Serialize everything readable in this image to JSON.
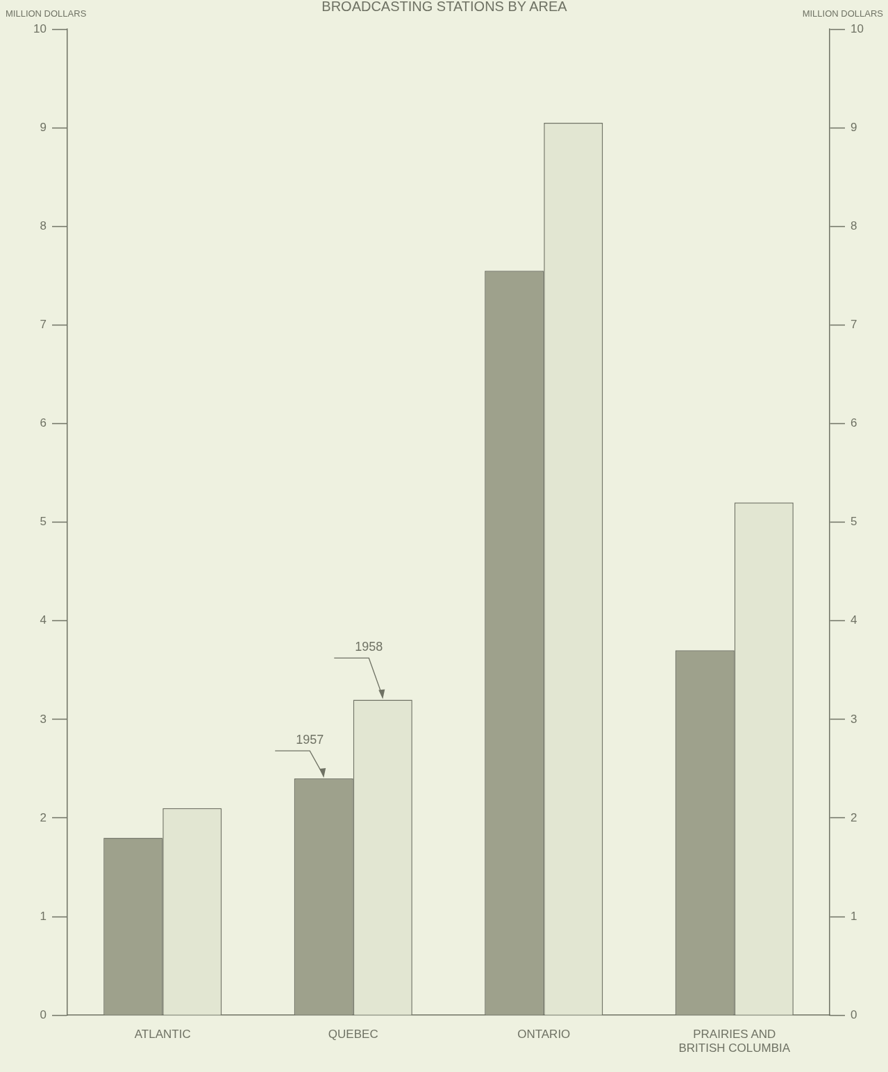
{
  "chart_data": {
    "type": "bar",
    "title": "BROADCASTING STATIONS BY AREA",
    "ylabel": "MILLION DOLLARS",
    "y2label": "MILLION DOLLARS",
    "categories": [
      "ATLANTIC",
      "QUEBEC",
      "ONTARIO",
      "PRAIRIES AND BRITISH COLUMBIA"
    ],
    "series": [
      {
        "name": "1957",
        "color": "#9ea18c",
        "values": [
          1.8,
          2.4,
          7.55,
          3.7
        ]
      },
      {
        "name": "1958",
        "color": "#e2e6d2",
        "values": [
          2.1,
          3.2,
          9.05,
          5.2
        ]
      }
    ],
    "ylim": [
      0,
      10
    ],
    "yticks": [
      0,
      1,
      2,
      3,
      4,
      5,
      6,
      7,
      8,
      9,
      10
    ],
    "y2lim": [
      0,
      10
    ],
    "y2ticks": [
      0,
      1,
      2,
      3,
      4,
      5,
      6,
      7,
      8,
      9,
      10
    ],
    "grid": false,
    "legend": false
  }
}
